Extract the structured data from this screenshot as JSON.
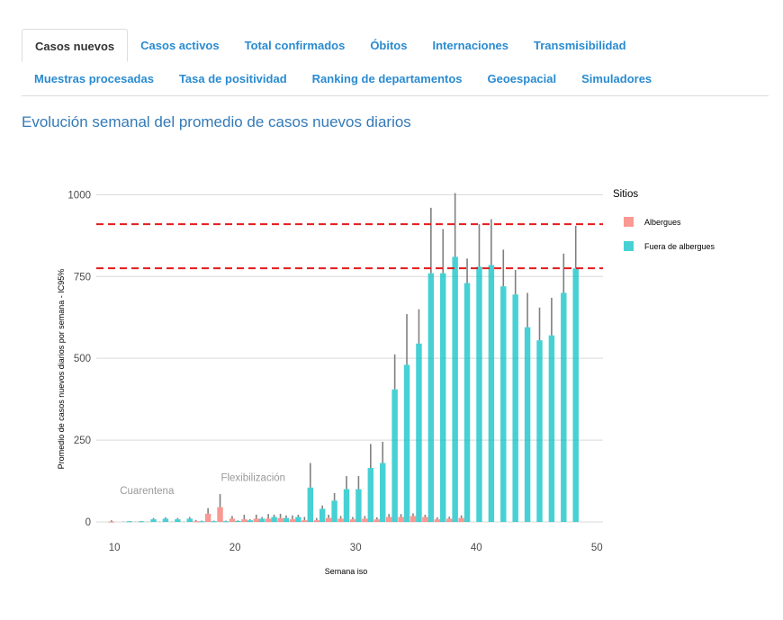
{
  "tabs": {
    "row1": [
      "Casos nuevos",
      "Casos activos",
      "Total confirmados",
      "Óbitos",
      "Internaciones",
      "Transmisibilidad"
    ],
    "row2": [
      "Muestras procesadas",
      "Tasa de positividad",
      "Ranking de departamentos",
      "Geoespacial",
      "Simuladores"
    ],
    "active": "Casos nuevos"
  },
  "page_title": "Evolución semanal del promedio de casos nuevos diarios",
  "colors": {
    "albergues": "#f8766d",
    "fuera": "#00bfc4",
    "reference_line": "#e41a1c",
    "error_bar": "#7f7f7f",
    "grid": "#d9d9d9"
  },
  "chart_data": {
    "type": "bar",
    "xlabel": "Semana iso",
    "ylabel": "Promedio de casos nuevos diarios por semana - IC95%",
    "xlim": [
      8.5,
      50.5
    ],
    "ylim": [
      0,
      1100
    ],
    "x_ticks": [
      10,
      20,
      30,
      40,
      50
    ],
    "y_ticks": [
      0,
      250,
      500,
      750,
      1000
    ],
    "grid": true,
    "legend_title": "Sitios",
    "legend_position": "right",
    "reference_lines": [
      775,
      910
    ],
    "annotations": [
      {
        "text": "Cuarentena",
        "x": 12.7,
        "y": 85
      },
      {
        "text": "Flexibilización",
        "x": 21.5,
        "y": 125
      }
    ],
    "series": [
      {
        "name": "Albergues",
        "x": [
          10,
          11,
          12,
          13,
          14,
          15,
          16,
          17,
          18,
          19,
          20,
          21,
          22,
          23,
          24,
          25,
          26,
          27,
          28,
          29,
          30,
          31,
          32,
          33,
          34,
          35,
          36,
          37,
          38,
          39
        ],
        "values": [
          1,
          0,
          0,
          0,
          0,
          0,
          0,
          2,
          25,
          45,
          10,
          8,
          10,
          10,
          12,
          8,
          5,
          5,
          12,
          10,
          8,
          10,
          8,
          15,
          15,
          18,
          15,
          8,
          10,
          12
        ],
        "upper": [
          5,
          1,
          1,
          1,
          1,
          1,
          1,
          6,
          42,
          85,
          18,
          22,
          22,
          24,
          25,
          20,
          15,
          12,
          22,
          18,
          15,
          18,
          14,
          24,
          24,
          26,
          22,
          14,
          16,
          20
        ]
      },
      {
        "name": "Fuera de albergues",
        "x": [
          11,
          12,
          13,
          14,
          15,
          16,
          17,
          18,
          19,
          20,
          21,
          22,
          23,
          24,
          25,
          26,
          27,
          28,
          29,
          30,
          31,
          32,
          33,
          34,
          35,
          36,
          37,
          38,
          39,
          40,
          41,
          42,
          43,
          44,
          45,
          46,
          47,
          48
        ],
        "values": [
          2,
          2,
          8,
          10,
          8,
          10,
          2,
          2,
          2,
          3,
          5,
          10,
          15,
          12,
          15,
          105,
          40,
          65,
          100,
          100,
          165,
          180,
          405,
          480,
          545,
          760,
          760,
          810,
          730,
          780,
          785,
          720,
          695,
          595,
          555,
          570,
          700,
          775
        ],
        "upper": [
          3,
          3,
          12,
          14,
          12,
          15,
          4,
          4,
          4,
          5,
          8,
          15,
          22,
          20,
          22,
          180,
          50,
          88,
          140,
          140,
          238,
          245,
          512,
          635,
          650,
          960,
          895,
          1005,
          805,
          910,
          925,
          832,
          770,
          700,
          655,
          685,
          820,
          905
        ]
      }
    ]
  }
}
